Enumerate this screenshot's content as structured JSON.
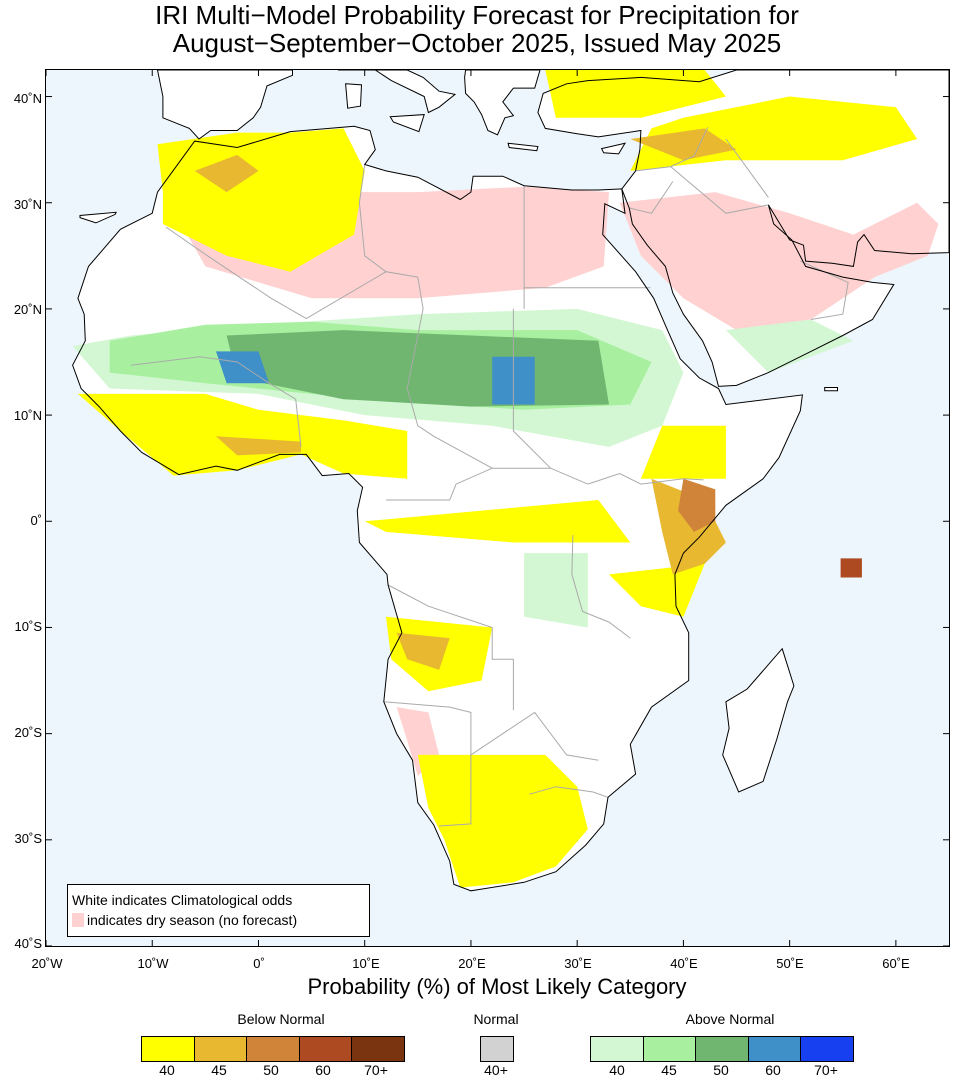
{
  "title": {
    "line1": "IRI Multi−Model Probability Forecast for Precipitation for",
    "line2": "August−September−October 2025, Issued May 2025"
  },
  "axes": {
    "lat_labels": [
      "40˚N",
      "30˚N",
      "20˚N",
      "10˚N",
      "0˚",
      "10˚S",
      "20˚S",
      "30˚S",
      "40˚S"
    ],
    "lon_labels": [
      "20˚W",
      "10˚W",
      "0˚",
      "10˚E",
      "20˚E",
      "30˚E",
      "40˚E",
      "50˚E",
      "60˚E"
    ],
    "xlabel": "Probability (%) of Most Likely Category"
  },
  "legend_box": {
    "line1": "White indicates Climatological odds",
    "line2": "indicates dry season (no forecast)",
    "dry_color": "#ffd1d1"
  },
  "colorbar": {
    "below": {
      "title": "Below Normal",
      "colors": [
        "#ffff00",
        "#e8b830",
        "#d0843a",
        "#ad4a22",
        "#7a3410"
      ],
      "ticks": [
        "40",
        "45",
        "50",
        "60",
        "70+"
      ]
    },
    "normal": {
      "title": "Normal",
      "colors": [
        "#d2d2d2"
      ],
      "ticks": [
        "40+"
      ]
    },
    "above": {
      "title": "Above Normal",
      "colors": [
        "#d2f7d2",
        "#a8f0a0",
        "#70b670",
        "#3f8fc8",
        "#1640f0"
      ],
      "ticks": [
        "40",
        "45",
        "50",
        "60",
        "70+"
      ]
    }
  },
  "map": {
    "ocean_color": "#eef6fd",
    "land_color": "#ffffff",
    "coast_color": "#000000",
    "border_color": "#aaaaaa",
    "projection_extent": {
      "lon": [
        -20,
        65
      ],
      "lat": [
        -40,
        42.5
      ]
    }
  }
}
